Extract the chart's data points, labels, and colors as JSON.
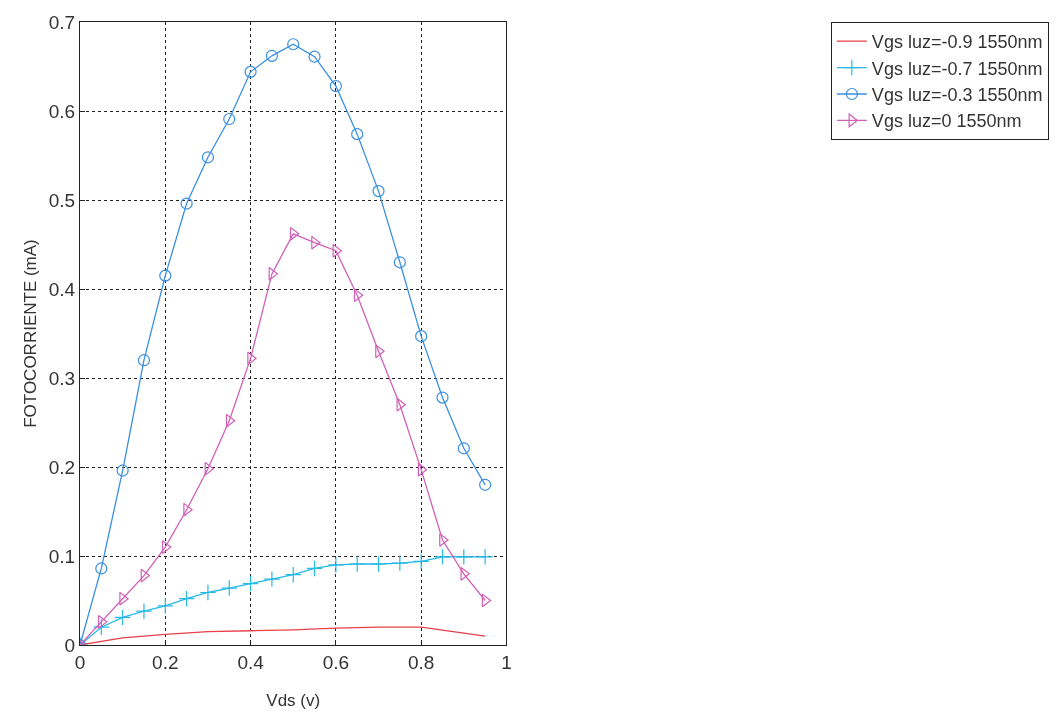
{
  "chart_data": {
    "type": "line",
    "xlabel": "Vds (v)",
    "ylabel": "FOTOCORRIENTE (mA)",
    "xlim": [
      0,
      1
    ],
    "ylim": [
      0,
      0.7
    ],
    "xticks": [
      0,
      0.2,
      0.4,
      0.6,
      0.8,
      1
    ],
    "yticks": [
      0,
      0.1,
      0.2,
      0.3,
      0.4,
      0.5,
      0.6,
      0.7
    ],
    "grid": true,
    "legend": "top right",
    "line_style": "solid",
    "x": [
      0,
      0.05,
      0.1,
      0.15,
      0.2,
      0.25,
      0.3,
      0.35,
      0.4,
      0.45,
      0.5,
      0.55,
      0.6,
      0.65,
      0.7,
      0.75,
      0.8,
      0.85,
      0.9,
      0.95
    ],
    "series": [
      {
        "name": "Vgs luz=-0.9 1550nm",
        "color": "#e8404a",
        "marker": "none",
        "x": [
          0,
          0.1,
          0.2,
          0.3,
          0.4,
          0.5,
          0.6,
          0.7,
          0.8,
          0.95
        ],
        "values": [
          0,
          0.008,
          0.012,
          0.015,
          0.016,
          0.017,
          0.019,
          0.02,
          0.02,
          0.01
        ]
      },
      {
        "name": "Vgs luz=-0.7 1550nm",
        "color": "#27b8e6",
        "marker": "cross",
        "values": [
          0,
          0.02,
          0.031,
          0.038,
          0.044,
          0.052,
          0.059,
          0.064,
          0.069,
          0.074,
          0.079,
          0.086,
          0.09,
          0.091,
          0.091,
          0.092,
          0.094,
          0.099,
          0.099,
          0.099
        ]
      },
      {
        "name": "Vgs luz=-0.3 1550nm",
        "color": "#3a8fe0",
        "marker": "circle",
        "values": [
          0,
          0.086,
          0.196,
          0.32,
          0.415,
          0.496,
          0.548,
          0.591,
          0.644,
          0.662,
          0.675,
          0.661,
          0.628,
          0.574,
          0.51,
          0.43,
          0.347,
          0.278,
          0.221,
          0.18
        ]
      },
      {
        "name": "Vgs luz=0 1550nm",
        "color": "#d060b8",
        "marker": "triangle",
        "values": [
          0,
          0.026,
          0.052,
          0.078,
          0.11,
          0.152,
          0.198,
          0.252,
          0.322,
          0.417,
          0.462,
          0.452,
          0.443,
          0.393,
          0.33,
          0.27,
          0.197,
          0.118,
          0.08,
          0.05
        ]
      }
    ]
  }
}
